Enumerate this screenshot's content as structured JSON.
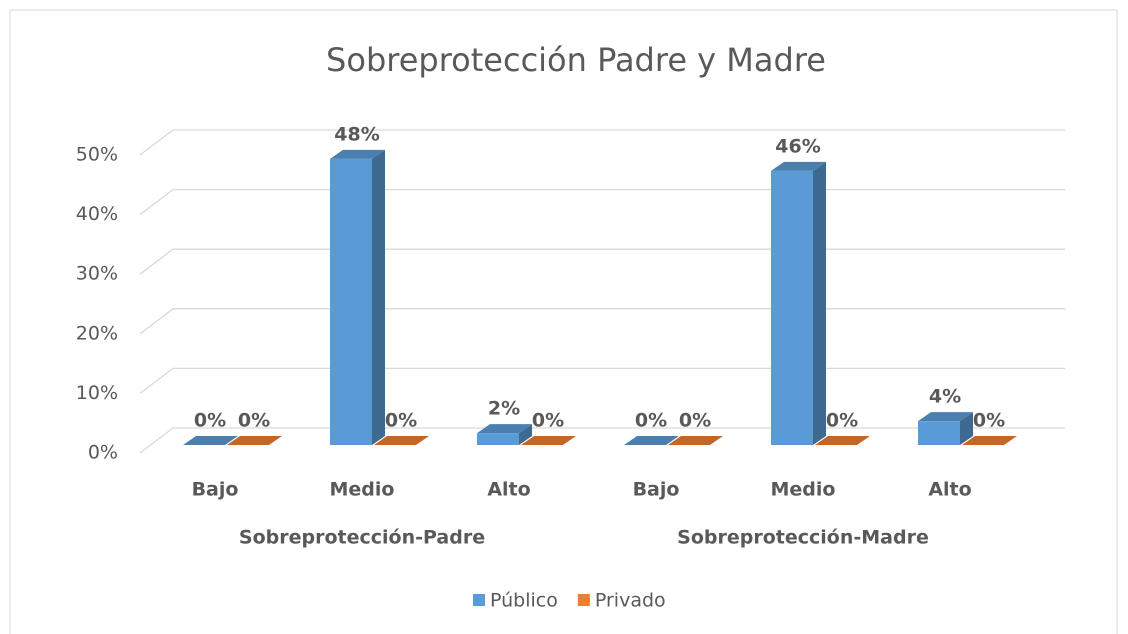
{
  "chart_data": {
    "type": "bar3d",
    "title": "Sobreprotección Padre y Madre",
    "categories": [
      "Bajo",
      "Medio",
      "Alto",
      "Bajo",
      "Medio",
      "Alto"
    ],
    "group_labels": [
      "Sobreprotección-Padre",
      "Sobreprotección-Madre"
    ],
    "series": [
      {
        "name": "Público",
        "color": "#5b9bd5",
        "values": [
          0,
          48,
          2,
          0,
          46,
          4
        ],
        "value_labels": [
          "0%",
          "48%",
          "2%",
          "0%",
          "46%",
          "4%"
        ]
      },
      {
        "name": "Privado",
        "color": "#ed7d31",
        "values": [
          0,
          0,
          0,
          0,
          0,
          0
        ],
        "value_labels": [
          "0%",
          "0%",
          "0%",
          "0%",
          "0%",
          "0%"
        ]
      }
    ],
    "ylim": [
      0,
      50
    ],
    "yticks": [
      {
        "value": 0,
        "label": "0%"
      },
      {
        "value": 10,
        "label": "10%"
      },
      {
        "value": 20,
        "label": "20%"
      },
      {
        "value": 30,
        "label": "30%"
      },
      {
        "value": 40,
        "label": "40%"
      },
      {
        "value": 50,
        "label": "50%"
      }
    ],
    "grid": true,
    "legend": "bottom"
  }
}
